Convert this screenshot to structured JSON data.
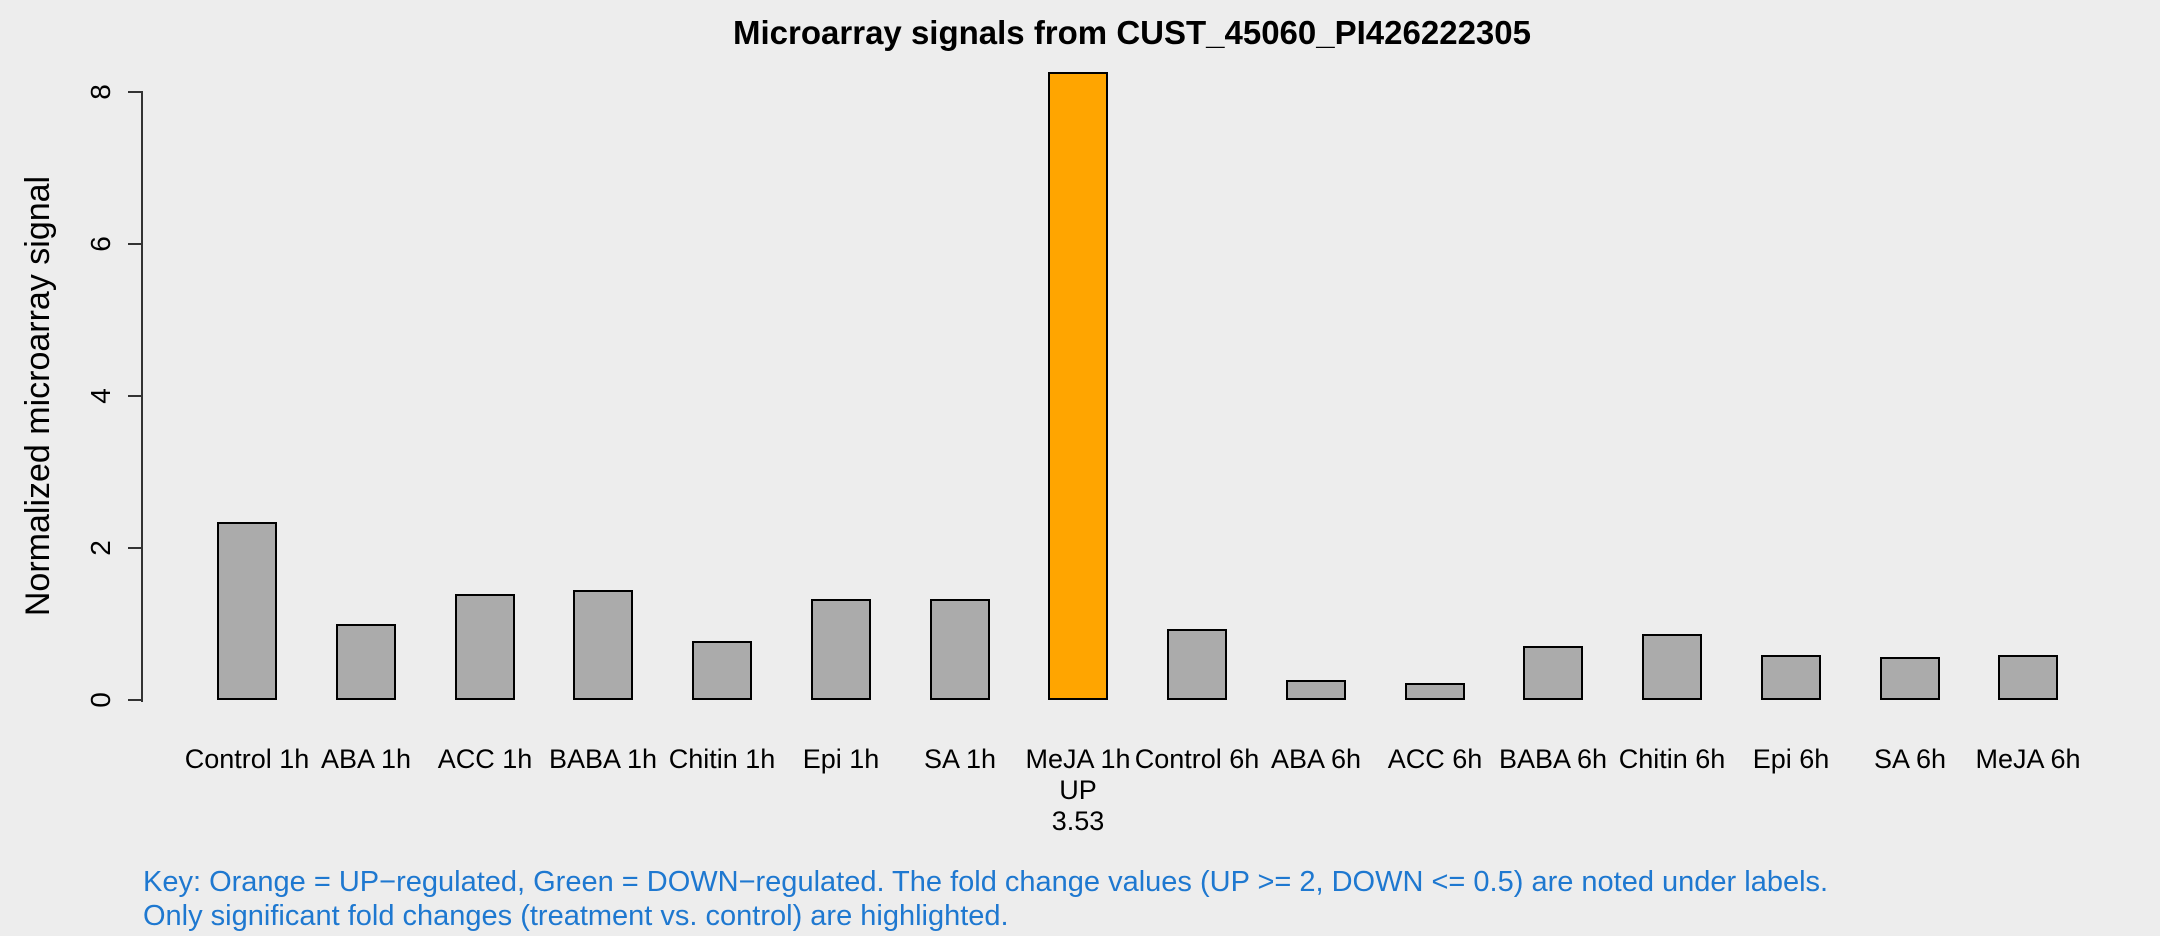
{
  "chart_data": {
    "type": "bar",
    "title": "Microarray signals from CUST_45060_PI426222305",
    "ylabel": "Normalized microarray signal",
    "xlabel": "",
    "categories": [
      "Control 1h",
      "ABA 1h",
      "ACC 1h",
      "BABA 1h",
      "Chitin 1h",
      "Epi 1h",
      "SA 1h",
      "MeJA 1h",
      "Control 6h",
      "ABA 6h",
      "ACC 6h",
      "BABA 6h",
      "Chitin 6h",
      "Epi 6h",
      "SA 6h",
      "MeJA 6h"
    ],
    "values": [
      2.34,
      1.0,
      1.4,
      1.45,
      0.78,
      1.33,
      1.33,
      8.26,
      0.94,
      0.26,
      0.23,
      0.71,
      0.87,
      0.59,
      0.57,
      0.59
    ],
    "yticks": [
      0,
      2,
      4,
      6,
      8
    ],
    "ylim": [
      0,
      8.3
    ],
    "grid": false,
    "legend_position": "none",
    "highlighted": [
      {
        "category": "MeJA 1h",
        "direction": "UP",
        "fold_change": "3.53"
      }
    ],
    "label_annotations": {
      "MeJA 1h": [
        "UP",
        "3.53"
      ]
    }
  },
  "key": {
    "line1": "Key: Orange = UP−regulated, Green = DOWN−regulated. The fold change values (UP >= 2, DOWN <= 0.5) are noted under labels.",
    "line2": "Only significant fold changes (treatment vs. control) are highlighted."
  },
  "colors": {
    "background": "#EDEDED",
    "bar_default": "#ABABAB",
    "bar_up": "#FFA500",
    "bar_border": "#000000",
    "axis": "#333333",
    "key_text": "#1E78D0",
    "text": "#000000"
  }
}
